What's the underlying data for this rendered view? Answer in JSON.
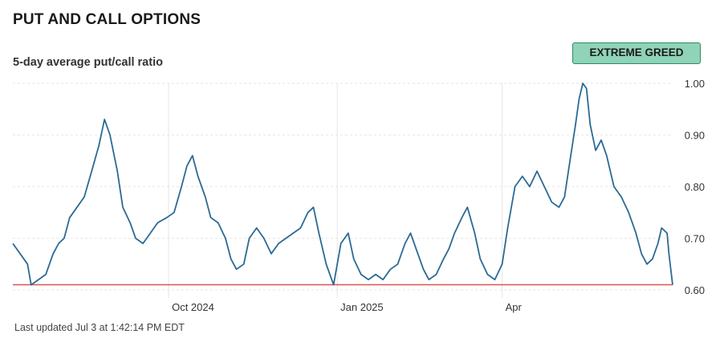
{
  "header": {
    "title": "PUT AND CALL OPTIONS",
    "subtitle": "5-day average put/call ratio",
    "badge": "EXTREME GREED"
  },
  "footer": {
    "last_updated": "Last updated Jul 3 at 1:42:14 PM EDT"
  },
  "colors": {
    "line": "#2b6a94",
    "reference": "#d9534f",
    "badge_bg": "#8fd3b8",
    "grid": "#e6e6e6"
  },
  "chart_data": {
    "type": "line",
    "title": "",
    "xlabel": "",
    "ylabel": "",
    "ylim": [
      0.6,
      1.0
    ],
    "y_ticks": [
      1.0,
      0.9,
      0.8,
      0.7,
      0.6
    ],
    "y_tick_labels": [
      "1.00",
      "0.90",
      "0.80",
      "0.70",
      "0.60"
    ],
    "x_range": [
      "2024-07-08",
      "2025-07-03"
    ],
    "x_ticks": [
      {
        "date": "2024-10-01",
        "label": "Oct 2024"
      },
      {
        "date": "2025-01-01",
        "label": "Jan 2025"
      },
      {
        "date": "2025-04-01",
        "label": "Apr"
      }
    ],
    "reference_line": 0.61,
    "grid": true,
    "series": [
      {
        "name": "",
        "points": [
          [
            "2024-07-08",
            0.69
          ],
          [
            "2024-07-12",
            0.67
          ],
          [
            "2024-07-16",
            0.65
          ],
          [
            "2024-07-18",
            0.61
          ],
          [
            "2024-07-22",
            0.62
          ],
          [
            "2024-07-26",
            0.63
          ],
          [
            "2024-07-30",
            0.67
          ],
          [
            "2024-08-02",
            0.69
          ],
          [
            "2024-08-05",
            0.7
          ],
          [
            "2024-08-08",
            0.74
          ],
          [
            "2024-08-12",
            0.76
          ],
          [
            "2024-08-16",
            0.78
          ],
          [
            "2024-08-20",
            0.83
          ],
          [
            "2024-08-24",
            0.88
          ],
          [
            "2024-08-27",
            0.93
          ],
          [
            "2024-08-30",
            0.9
          ],
          [
            "2024-09-03",
            0.83
          ],
          [
            "2024-09-06",
            0.76
          ],
          [
            "2024-09-10",
            0.73
          ],
          [
            "2024-09-13",
            0.7
          ],
          [
            "2024-09-17",
            0.69
          ],
          [
            "2024-09-21",
            0.71
          ],
          [
            "2024-09-25",
            0.73
          ],
          [
            "2024-09-30",
            0.74
          ],
          [
            "2024-10-04",
            0.75
          ],
          [
            "2024-10-08",
            0.8
          ],
          [
            "2024-10-11",
            0.84
          ],
          [
            "2024-10-14",
            0.86
          ],
          [
            "2024-10-17",
            0.82
          ],
          [
            "2024-10-21",
            0.78
          ],
          [
            "2024-10-24",
            0.74
          ],
          [
            "2024-10-28",
            0.73
          ],
          [
            "2024-11-01",
            0.7
          ],
          [
            "2024-11-04",
            0.66
          ],
          [
            "2024-11-07",
            0.64
          ],
          [
            "2024-11-11",
            0.65
          ],
          [
            "2024-11-14",
            0.7
          ],
          [
            "2024-11-18",
            0.72
          ],
          [
            "2024-11-22",
            0.7
          ],
          [
            "2024-11-26",
            0.67
          ],
          [
            "2024-11-30",
            0.69
          ],
          [
            "2024-12-04",
            0.7
          ],
          [
            "2024-12-08",
            0.71
          ],
          [
            "2024-12-12",
            0.72
          ],
          [
            "2024-12-16",
            0.75
          ],
          [
            "2024-12-19",
            0.76
          ],
          [
            "2024-12-22",
            0.71
          ],
          [
            "2024-12-26",
            0.65
          ],
          [
            "2024-12-30",
            0.61
          ],
          [
            "2025-01-03",
            0.69
          ],
          [
            "2025-01-07",
            0.71
          ],
          [
            "2025-01-10",
            0.66
          ],
          [
            "2025-01-14",
            0.63
          ],
          [
            "2025-01-18",
            0.62
          ],
          [
            "2025-01-22",
            0.63
          ],
          [
            "2025-01-26",
            0.62
          ],
          [
            "2025-01-30",
            0.64
          ],
          [
            "2025-02-03",
            0.65
          ],
          [
            "2025-02-07",
            0.69
          ],
          [
            "2025-02-10",
            0.71
          ],
          [
            "2025-02-13",
            0.68
          ],
          [
            "2025-02-17",
            0.64
          ],
          [
            "2025-02-20",
            0.62
          ],
          [
            "2025-02-24",
            0.63
          ],
          [
            "2025-02-28",
            0.66
          ],
          [
            "2025-03-03",
            0.68
          ],
          [
            "2025-03-06",
            0.71
          ],
          [
            "2025-03-10",
            0.74
          ],
          [
            "2025-03-13",
            0.76
          ],
          [
            "2025-03-17",
            0.71
          ],
          [
            "2025-03-20",
            0.66
          ],
          [
            "2025-03-24",
            0.63
          ],
          [
            "2025-03-28",
            0.62
          ],
          [
            "2025-04-01",
            0.65
          ],
          [
            "2025-04-04",
            0.72
          ],
          [
            "2025-04-08",
            0.8
          ],
          [
            "2025-04-12",
            0.82
          ],
          [
            "2025-04-16",
            0.8
          ],
          [
            "2025-04-20",
            0.83
          ],
          [
            "2025-04-24",
            0.8
          ],
          [
            "2025-04-28",
            0.77
          ],
          [
            "2025-05-02",
            0.76
          ],
          [
            "2025-05-05",
            0.78
          ],
          [
            "2025-05-08",
            0.85
          ],
          [
            "2025-05-11",
            0.92
          ],
          [
            "2025-05-13",
            0.97
          ],
          [
            "2025-05-15",
            1.0
          ],
          [
            "2025-05-17",
            0.99
          ],
          [
            "2025-05-19",
            0.92
          ],
          [
            "2025-05-22",
            0.87
          ],
          [
            "2025-05-25",
            0.89
          ],
          [
            "2025-05-28",
            0.86
          ],
          [
            "2025-06-01",
            0.8
          ],
          [
            "2025-06-05",
            0.78
          ],
          [
            "2025-06-09",
            0.75
          ],
          [
            "2025-06-13",
            0.71
          ],
          [
            "2025-06-16",
            0.67
          ],
          [
            "2025-06-19",
            0.65
          ],
          [
            "2025-06-22",
            0.66
          ],
          [
            "2025-06-25",
            0.69
          ],
          [
            "2025-06-27",
            0.72
          ],
          [
            "2025-06-30",
            0.71
          ],
          [
            "2025-07-01",
            0.67
          ],
          [
            "2025-07-02",
            0.64
          ],
          [
            "2025-07-03",
            0.61
          ]
        ]
      }
    ]
  }
}
